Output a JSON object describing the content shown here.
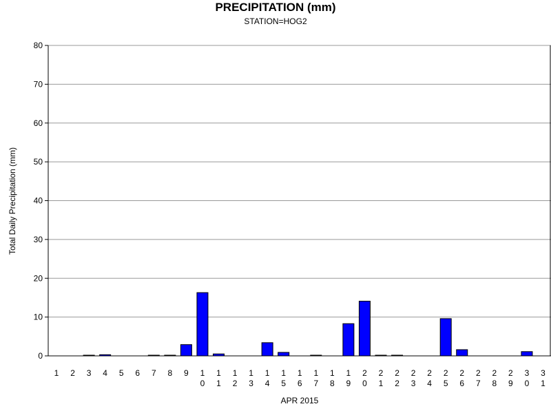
{
  "chart_data": {
    "type": "bar",
    "title": "PRECIPITATION (mm)",
    "subtitle": "STATION=HOG2",
    "xlabel": "APR 2015",
    "ylabel": "Total Daily Precipitation (mm)",
    "ylim": [
      0,
      80
    ],
    "yticks": [
      0,
      10,
      20,
      30,
      40,
      50,
      60,
      70,
      80
    ],
    "grid": true,
    "bar_color": "#0000ff",
    "categories": [
      "1",
      "2",
      "3",
      "4",
      "5",
      "6",
      "7",
      "8",
      "9",
      "10",
      "11",
      "12",
      "13",
      "14",
      "15",
      "16",
      "17",
      "18",
      "19",
      "20",
      "21",
      "22",
      "23",
      "24",
      "25",
      "26",
      "27",
      "28",
      "29",
      "30",
      "31"
    ],
    "values": [
      0,
      0,
      0.1,
      0.3,
      0,
      0,
      0.1,
      0.1,
      2.9,
      16.3,
      0.5,
      0,
      0,
      3.4,
      0.9,
      0,
      0.1,
      0,
      8.3,
      14.1,
      0.1,
      0.1,
      0,
      0,
      9.6,
      1.6,
      0,
      0,
      0,
      1.1,
      0
    ]
  }
}
